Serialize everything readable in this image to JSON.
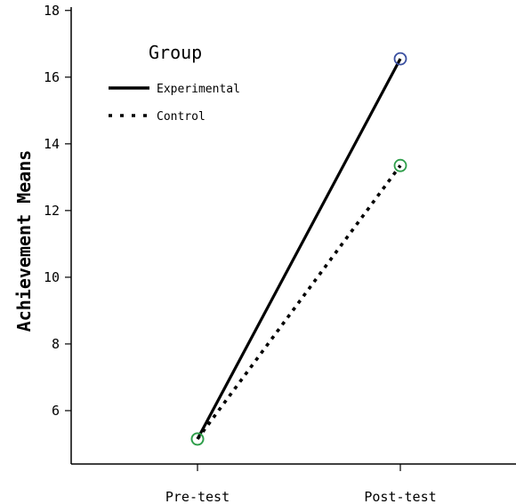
{
  "chart_data": {
    "type": "line",
    "categories": [
      "Pre-test",
      "Post-test"
    ],
    "ylabel": "Achievement Means",
    "xlabel": "",
    "ylim": [
      4.4,
      18.1
    ],
    "yticks": [
      6,
      8,
      10,
      12,
      14,
      16,
      18
    ],
    "grid": false,
    "legend": {
      "title": "Group",
      "placement": "top-left"
    },
    "series": [
      {
        "name": "Experimental",
        "values": [
          5.15,
          16.55
        ],
        "line_style": "solid",
        "line_color": "#000000",
        "marker_color": "#3a4fa0"
      },
      {
        "name": "Control",
        "values": [
          5.15,
          13.35
        ],
        "line_style": "dotted",
        "line_color": "#000000",
        "marker_color": "#2e9e4a"
      }
    ]
  }
}
